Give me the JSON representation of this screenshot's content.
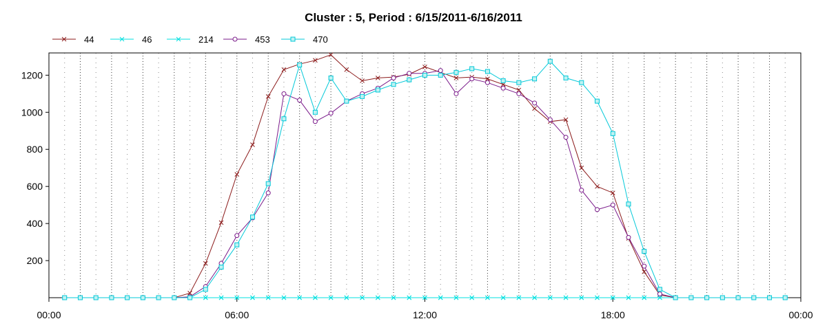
{
  "chart_data": {
    "type": "line",
    "title": "Cluster : 5, Period : 6/15/2011-6/16/2011",
    "xlabel": "",
    "ylabel": "",
    "x_range_hours": [
      0,
      24
    ],
    "ylim": [
      0,
      1320
    ],
    "x_ticks": [
      {
        "hour": 0,
        "label": "00:00"
      },
      {
        "hour": 6,
        "label": "06:00"
      },
      {
        "hour": 12,
        "label": "12:00"
      },
      {
        "hour": 18,
        "label": "18:00"
      },
      {
        "hour": 24,
        "label": "00:00"
      }
    ],
    "y_ticks": [
      200,
      400,
      600,
      800,
      1000,
      1200
    ],
    "grid": true,
    "legend_position": "top-left",
    "x": [
      "00:30",
      "01:00",
      "01:30",
      "02:00",
      "02:30",
      "03:00",
      "03:30",
      "04:00",
      "04:30",
      "05:00",
      "05:30",
      "06:00",
      "06:30",
      "07:00",
      "07:30",
      "08:00",
      "08:30",
      "09:00",
      "09:30",
      "10:00",
      "10:30",
      "11:00",
      "11:30",
      "12:00",
      "12:30",
      "13:00",
      "13:30",
      "14:00",
      "14:30",
      "15:00",
      "15:30",
      "16:00",
      "16:30",
      "17:00",
      "17:30",
      "18:00",
      "18:30",
      "19:00",
      "19:30",
      "20:00",
      "20:30",
      "21:00",
      "21:30",
      "22:00",
      "22:30",
      "23:00",
      "23:30"
    ],
    "series": [
      {
        "name": "44",
        "color": "#8b1a1a",
        "marker": "x",
        "values": [
          0,
          0,
          0,
          0,
          0,
          0,
          0,
          0,
          25,
          185,
          405,
          665,
          825,
          1085,
          1230,
          1260,
          1280,
          1310,
          1230,
          1170,
          1185,
          1190,
          1205,
          1245,
          1215,
          1185,
          1190,
          1180,
          1150,
          1120,
          1020,
          950,
          960,
          700,
          600,
          565,
          320,
          140,
          15,
          0,
          0,
          0,
          0,
          0,
          0,
          0,
          0
        ]
      },
      {
        "name": "46",
        "color": "#00e0e0",
        "marker": "asterisk",
        "values": [
          0,
          0,
          0,
          0,
          0,
          0,
          0,
          0,
          0,
          0,
          0,
          0,
          0,
          0,
          0,
          0,
          0,
          0,
          0,
          0,
          0,
          0,
          0,
          0,
          0,
          0,
          0,
          0,
          0,
          0,
          0,
          0,
          0,
          0,
          0,
          0,
          0,
          0,
          0,
          0,
          0,
          0,
          0,
          0,
          0,
          0,
          0
        ]
      },
      {
        "name": "214",
        "color": "#00e0e0",
        "marker": "x",
        "values": [
          0,
          0,
          0,
          0,
          0,
          0,
          0,
          0,
          0,
          0,
          0,
          0,
          0,
          0,
          0,
          0,
          0,
          0,
          0,
          0,
          0,
          0,
          0,
          0,
          0,
          0,
          0,
          0,
          0,
          0,
          0,
          0,
          0,
          0,
          0,
          0,
          0,
          0,
          0,
          0,
          0,
          0,
          0,
          0,
          0,
          0,
          0
        ]
      },
      {
        "name": "453",
        "color": "#7a1a8a",
        "marker": "circle",
        "values": [
          0,
          0,
          0,
          0,
          0,
          0,
          0,
          0,
          5,
          60,
          185,
          335,
          430,
          565,
          1100,
          1065,
          950,
          995,
          1060,
          1100,
          1130,
          1185,
          1210,
          1210,
          1225,
          1100,
          1180,
          1160,
          1130,
          1100,
          1050,
          960,
          865,
          580,
          475,
          500,
          325,
          170,
          20,
          0,
          0,
          0,
          0,
          0,
          0,
          0,
          0
        ]
      },
      {
        "name": "470",
        "color": "#00c8d8",
        "marker": "square",
        "values": [
          0,
          0,
          0,
          0,
          0,
          0,
          0,
          0,
          0,
          45,
          165,
          285,
          435,
          615,
          965,
          1255,
          1000,
          1185,
          1060,
          1085,
          1120,
          1150,
          1175,
          1200,
          1200,
          1215,
          1235,
          1220,
          1170,
          1160,
          1180,
          1275,
          1185,
          1160,
          1060,
          885,
          505,
          250,
          45,
          0,
          0,
          0,
          0,
          0,
          0,
          0,
          0
        ]
      }
    ]
  }
}
